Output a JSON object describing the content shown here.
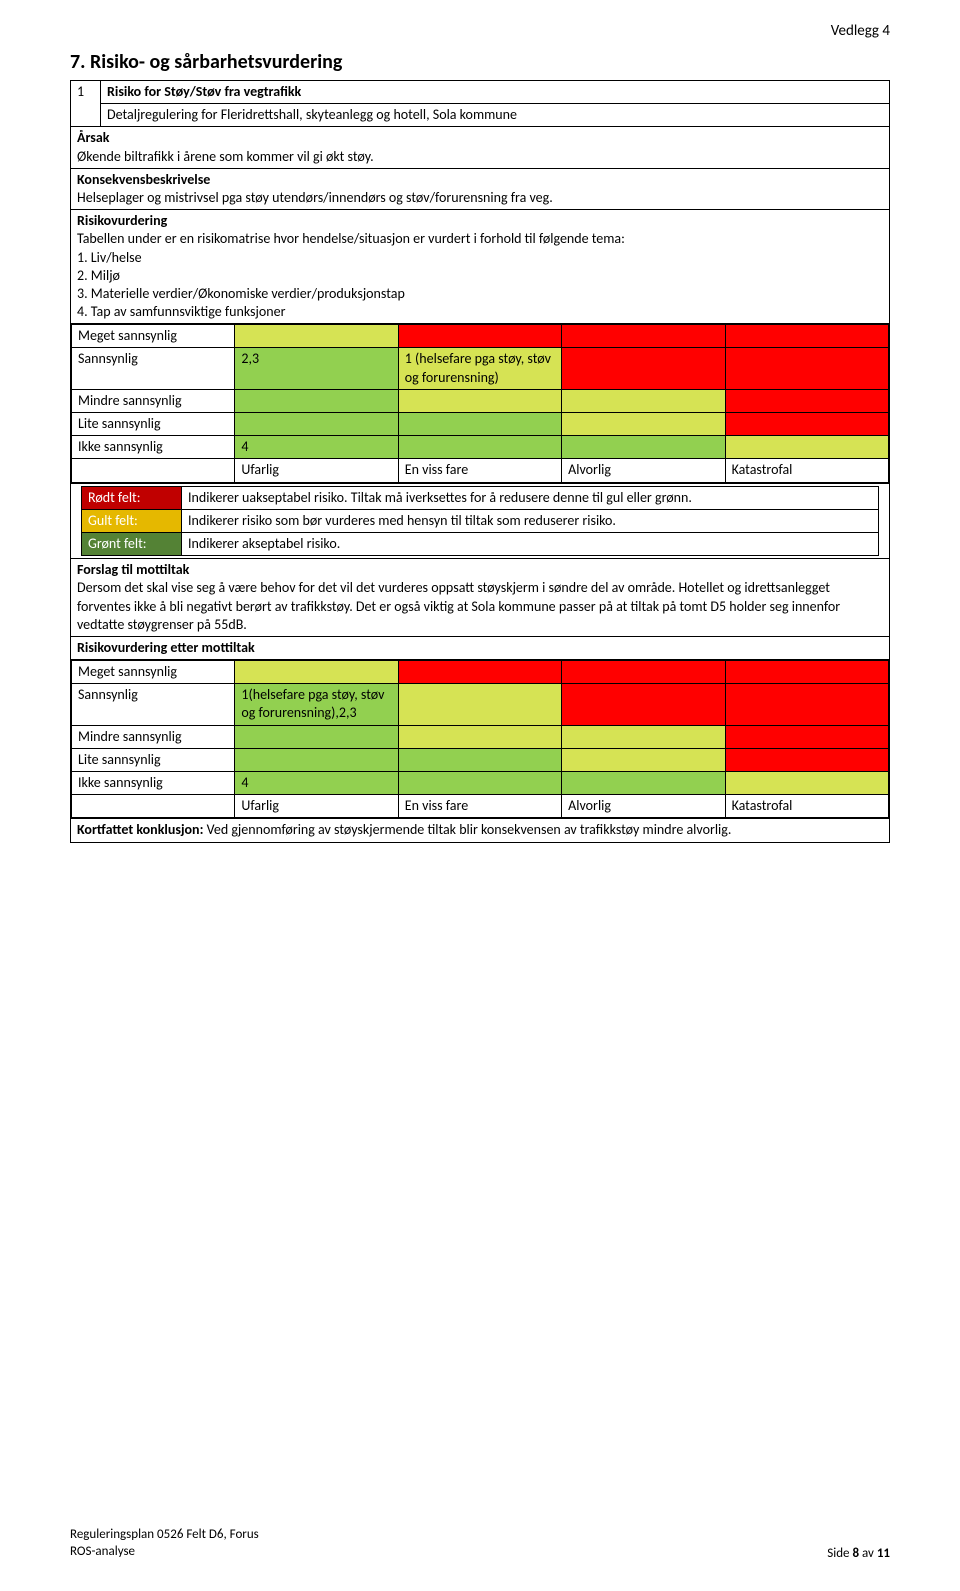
{
  "colors": {
    "green": "#92d050",
    "yellow": "#d6e354",
    "red": "#ff0000",
    "legend_red": "#c00000",
    "legend_yellow": "#e5b800",
    "legend_green": "#548235"
  },
  "header": {
    "vedlegg": "Vedlegg 4"
  },
  "heading": "7.  Risiko- og sårbarhetsvurdering",
  "row1": {
    "num": "1",
    "title": "Risiko for Støy/Støv fra vegtrafikk",
    "subtitle": "Detaljregulering for Fleridrettshall, skyteanlegg og hotell, Sola kommune"
  },
  "arsak": {
    "label": "Årsak",
    "text": "Økende biltrafikk i årene som kommer vil gi økt støy."
  },
  "konsekvens": {
    "label": "Konsekvensbeskrivelse",
    "text": "Helseplager og mistrivsel pga støy utendørs/innendørs og støv/forurensning fra veg."
  },
  "risikovurdering": {
    "label": "Risikovurdering",
    "intro": "Tabellen under er en risikomatrise hvor hendelse/situasjon er vurdert i forhold til følgende tema:",
    "l1": "1. Liv/helse",
    "l2": "2. Miljø",
    "l3": "3. Materielle verdier/Økonomiske verdier/produksjonstap",
    "l4": "4. Tap av samfunnsviktige funksjoner"
  },
  "matrix1": {
    "rows": [
      "Meget sannsynlig",
      "Sannsynlig",
      "Mindre sannsynlig",
      "Lite sannsynlig",
      "Ikke sannsynlig"
    ],
    "cols": [
      "Ufarlig",
      "En viss fare",
      "Alvorlig",
      "Katastrofal"
    ],
    "c_sannsynlig_ufarlig": "2,3",
    "c_sannsynlig_envissfare": "1 (helsefare pga støy, støv og forurensning)",
    "c_ikke_ufarlig": "4",
    "cell_colors": {
      "r0": [
        "yellow",
        "red",
        "red",
        "red"
      ],
      "r1": [
        "green",
        "yellow",
        "red",
        "red"
      ],
      "r2": [
        "green",
        "yellow",
        "yellow",
        "red"
      ],
      "r3": [
        "green",
        "green",
        "yellow",
        "red"
      ],
      "r4": [
        "green",
        "green",
        "green",
        "yellow"
      ]
    }
  },
  "legend": {
    "r1_label": "Rødt felt:",
    "r1_text": "Indikerer uakseptabel risiko. Tiltak må iverksettes for å redusere denne til gul eller grønn.",
    "r2_label": "Gult felt:",
    "r2_text": "Indikerer risiko som bør vurderes med hensyn til tiltak som reduserer risiko.",
    "r3_label": "Grønt felt:",
    "r3_text": "Indikerer akseptabel risiko."
  },
  "forslag": {
    "label": "Forslag til mottiltak",
    "text": "Dersom det skal vise seg å være behov for det vil det vurderes oppsatt støyskjerm i søndre del av område. Hotellet og idrettsanlegget forventes ikke å bli negativt berørt av trafikkstøy. Det er også viktig at Sola kommune passer på at tiltak på tomt D5 holder seg innenfor vedtatte støygrenser på 55dB."
  },
  "etter": {
    "label": "Risikovurdering etter mottiltak"
  },
  "matrix2": {
    "rows": [
      "Meget sannsynlig",
      "Sannsynlig",
      "Mindre sannsynlig",
      "Lite sannsynlig",
      "Ikke sannsynlig"
    ],
    "cols": [
      "Ufarlig",
      "En viss fare",
      "Alvorlig",
      "Katastrofal"
    ],
    "c_sannsynlig_ufarlig": "1(helsefare pga støy, støv og forurensning),2,3",
    "c_ikke_ufarlig": "4",
    "cell_colors": {
      "r0": [
        "yellow",
        "red",
        "red",
        "red"
      ],
      "r1": [
        "green",
        "yellow",
        "red",
        "red"
      ],
      "r2": [
        "green",
        "yellow",
        "yellow",
        "red"
      ],
      "r3": [
        "green",
        "green",
        "yellow",
        "red"
      ],
      "r4": [
        "green",
        "green",
        "green",
        "yellow"
      ]
    }
  },
  "konklusjon": {
    "label": "Kortfattet konklusjon: ",
    "text": "Ved gjennomføring av støyskjermende tiltak blir konsekvensen av trafikkstøy mindre alvorlig."
  },
  "footer": {
    "line1": "Reguleringsplan 0526  Felt D6, Forus",
    "line2": "ROS-analyse",
    "page_prefix": "Side ",
    "page_num": "8",
    "page_mid": " av ",
    "page_total": "11"
  }
}
